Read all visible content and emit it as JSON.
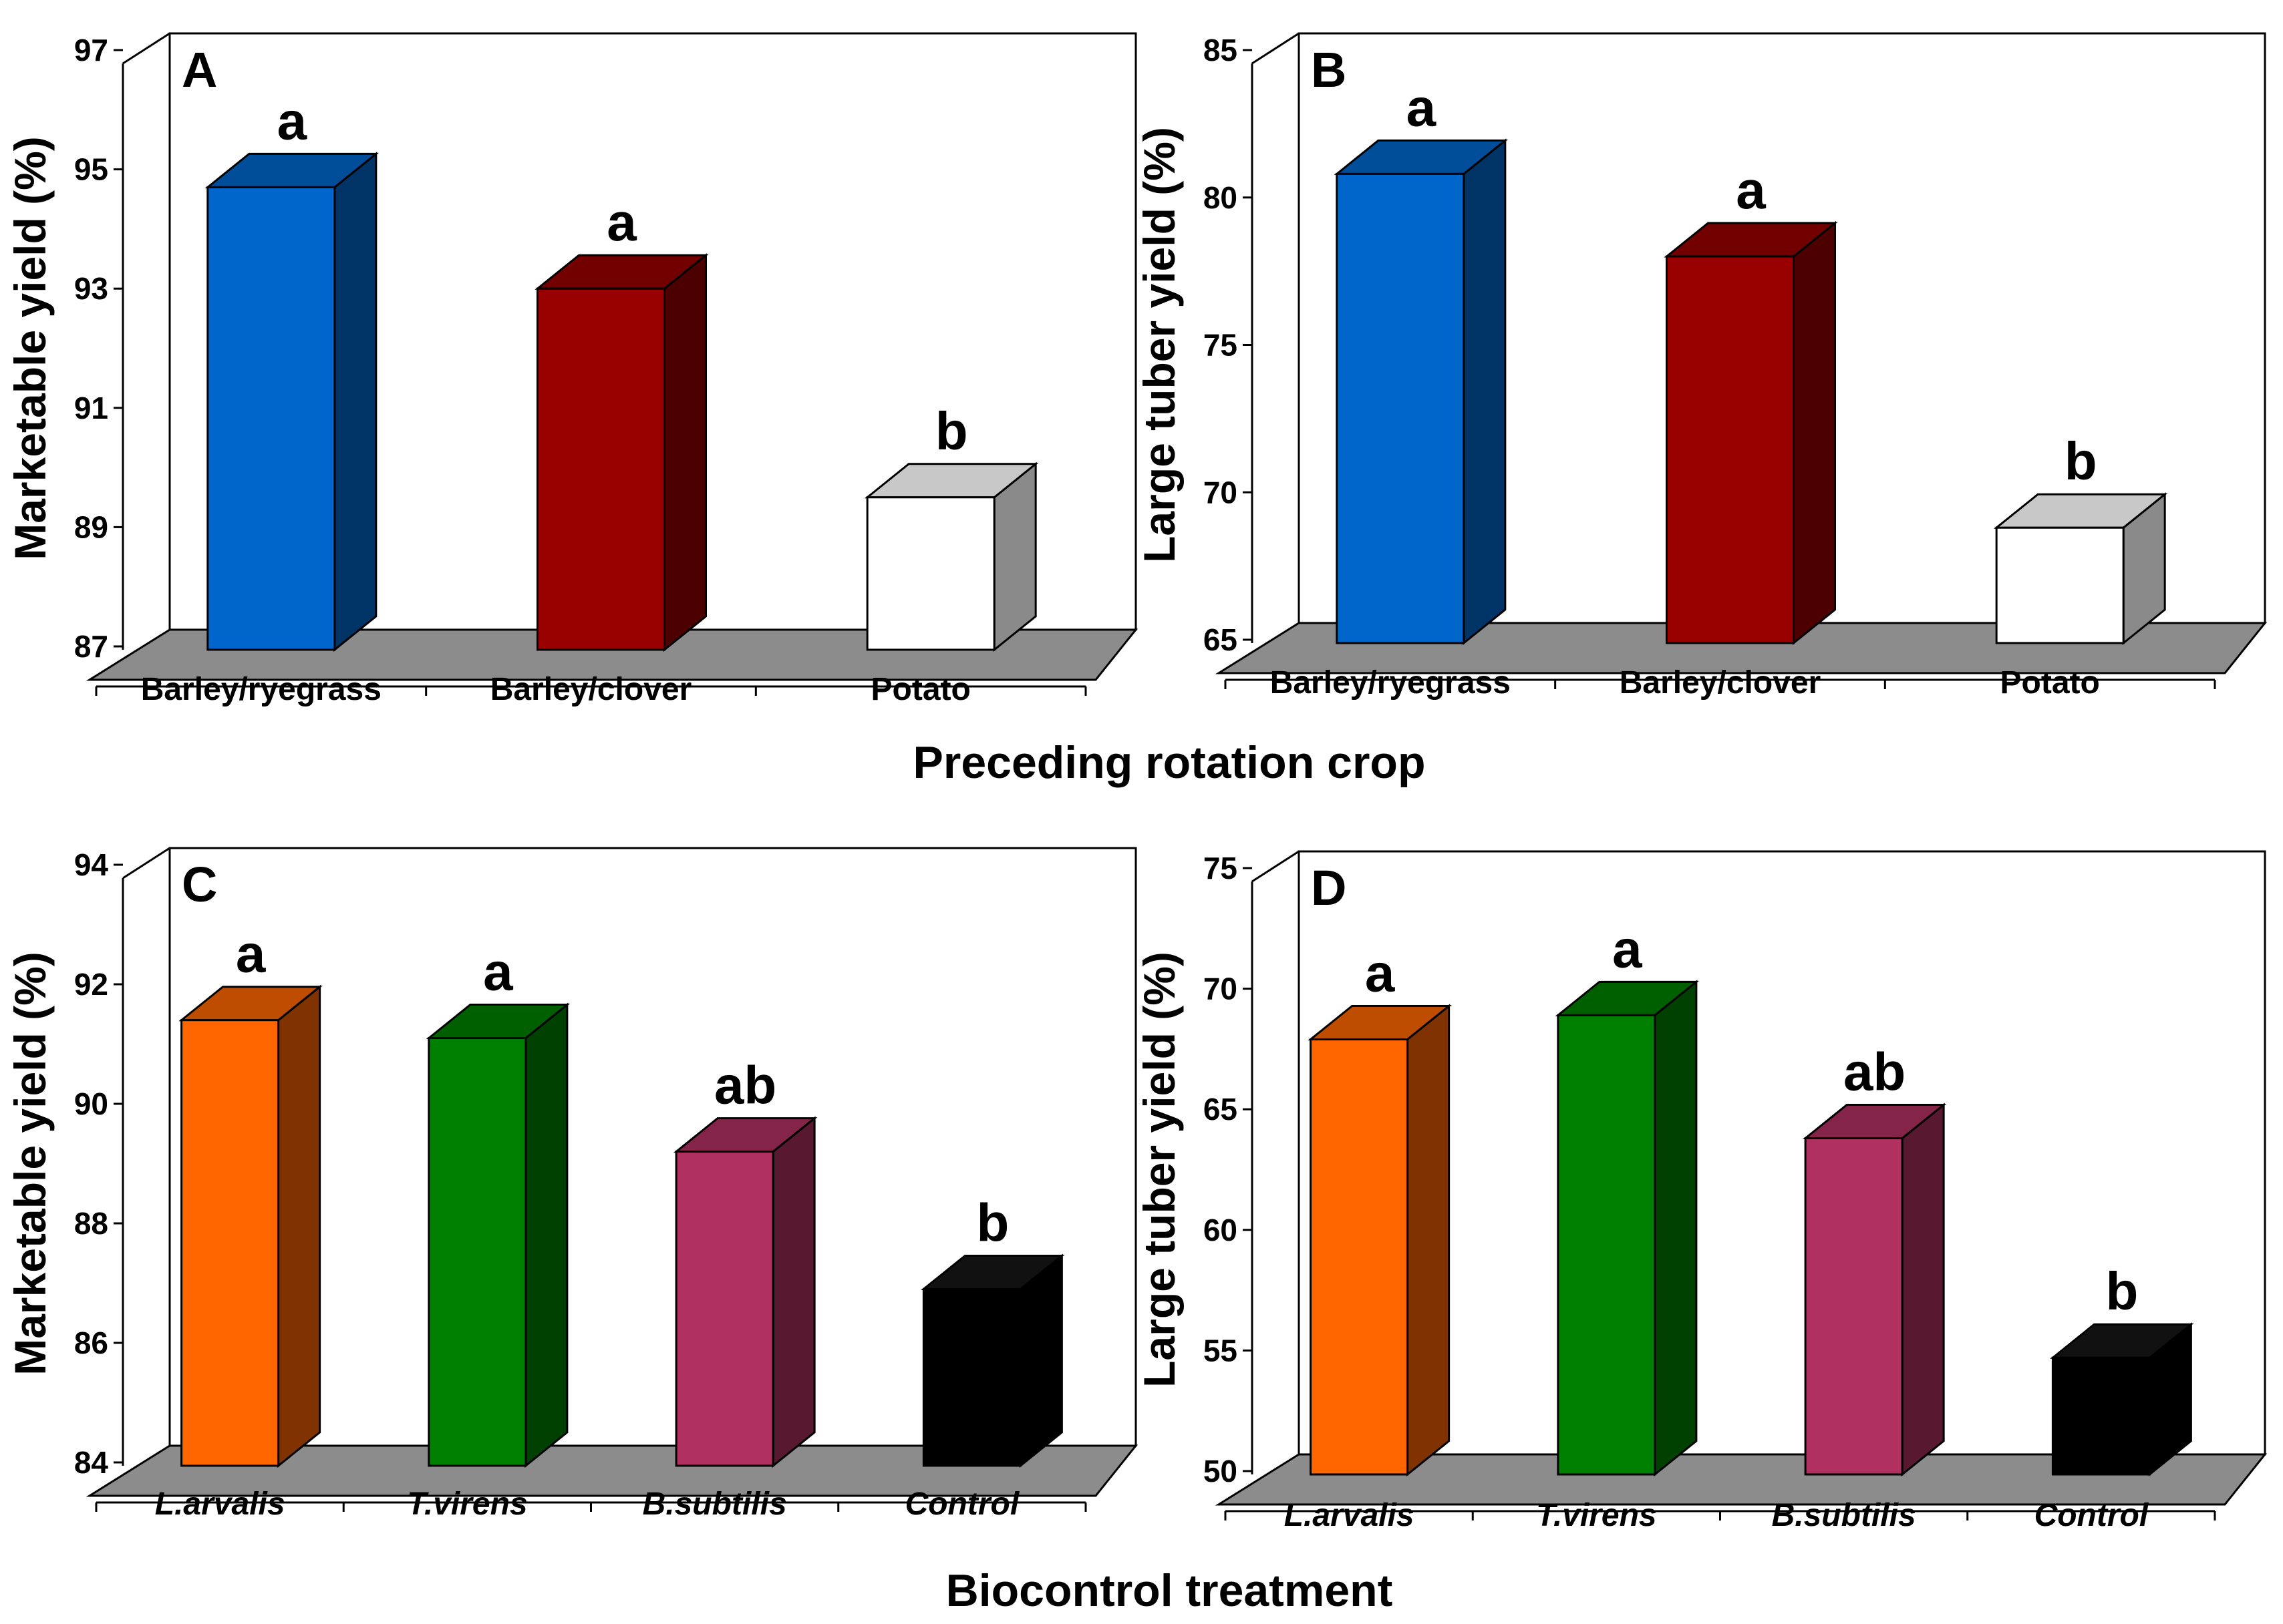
{
  "group_titles": {
    "top": "Preceding rotation crop",
    "bottom": "Biocontrol treatment"
  },
  "chart_data": [
    {
      "panel": "A",
      "type": "bar",
      "ylabel": "Marketable yield (%)",
      "ylim": [
        87,
        97
      ],
      "yticks": [
        87,
        89,
        91,
        93,
        95,
        97
      ],
      "italic_categories": false,
      "categories": [
        "Barley/ryegrass",
        "Barley/clover",
        "Potato"
      ],
      "values": [
        94.7,
        93.0,
        89.5
      ],
      "significance": [
        "a",
        "a",
        "b"
      ],
      "colors": [
        "#0066CC",
        "#990000",
        "#FFFFFF"
      ]
    },
    {
      "panel": "B",
      "type": "bar",
      "ylabel": "Large tuber yield (%)",
      "ylim": [
        65,
        85
      ],
      "yticks": [
        65,
        70,
        75,
        80,
        85
      ],
      "italic_categories": false,
      "categories": [
        "Barley/ryegrass",
        "Barley/clover",
        "Potato"
      ],
      "values": [
        80.8,
        78.0,
        68.8
      ],
      "significance": [
        "a",
        "a",
        "b"
      ],
      "colors": [
        "#0066CC",
        "#990000",
        "#FFFFFF"
      ]
    },
    {
      "panel": "C",
      "type": "bar",
      "ylabel": "Marketable yield (%)",
      "ylim": [
        84,
        94
      ],
      "yticks": [
        84,
        86,
        88,
        90,
        92,
        94
      ],
      "italic_categories": true,
      "categories": [
        "L.arvalis",
        "T.virens",
        "B.subtilis",
        "Control"
      ],
      "values": [
        91.4,
        91.1,
        89.2,
        86.9
      ],
      "significance": [
        "a",
        "a",
        "ab",
        "b"
      ],
      "colors": [
        "#FF6600",
        "#008000",
        "#B03060",
        "#000000"
      ]
    },
    {
      "panel": "D",
      "type": "bar",
      "ylabel": "Large tuber yield (%)",
      "ylim": [
        50,
        75
      ],
      "yticks": [
        50,
        55,
        60,
        65,
        70,
        75
      ],
      "italic_categories": true,
      "categories": [
        "L.arvalis",
        "T.virens",
        "B.subtilis",
        "Control"
      ],
      "values": [
        67.9,
        68.9,
        63.8,
        54.7
      ],
      "significance": [
        "a",
        "a",
        "ab",
        "b"
      ],
      "colors": [
        "#FF6600",
        "#008000",
        "#B03060",
        "#000000"
      ]
    }
  ]
}
